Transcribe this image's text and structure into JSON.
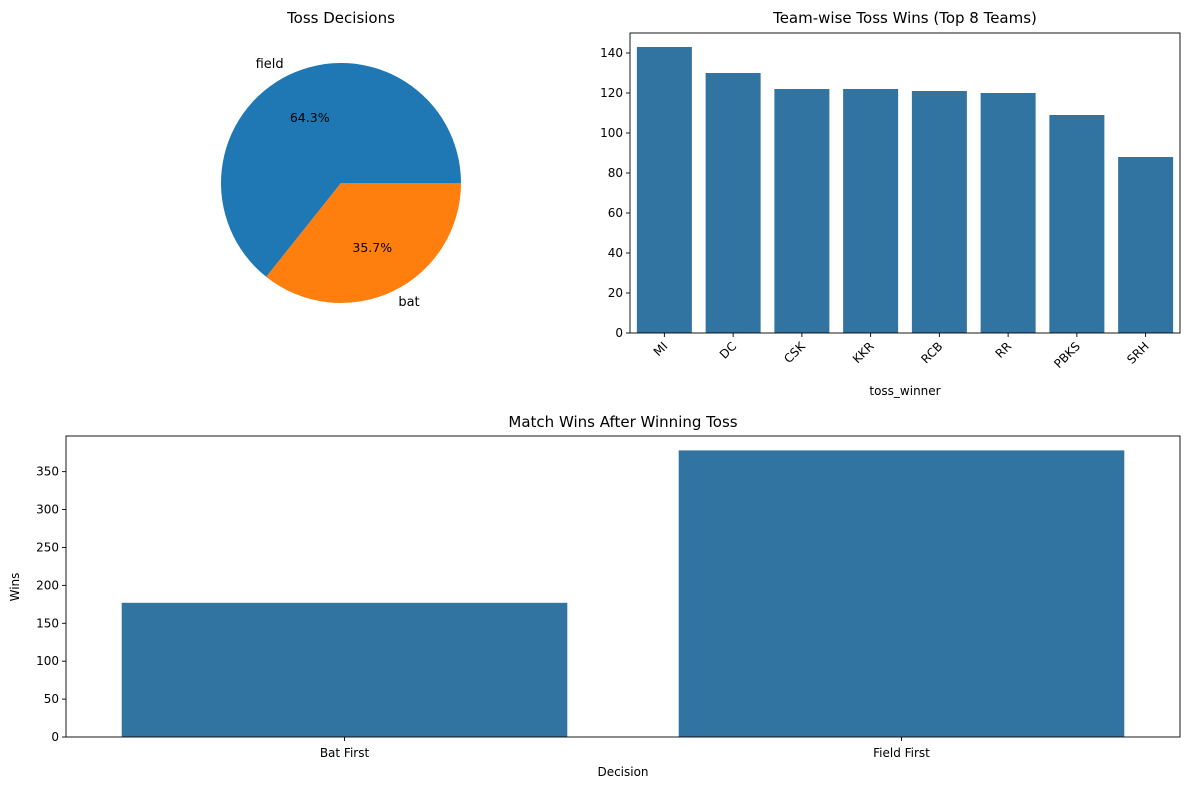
{
  "colors": {
    "blue": "#1f77b4",
    "orange": "#ff7f0e",
    "bar": "#3274a1"
  },
  "chart_data": [
    {
      "type": "pie",
      "title": "Toss Decisions",
      "labels": [
        "field",
        "bat"
      ],
      "values": [
        64.3,
        35.7
      ],
      "percent_labels": [
        "64.3%",
        "35.7%"
      ],
      "colors": [
        "#1f77b4",
        "#ff7f0e"
      ]
    },
    {
      "type": "bar",
      "title": "Team-wise Toss Wins (Top 8 Teams)",
      "categories": [
        "MI",
        "DC",
        "CSK",
        "KKR",
        "RCB",
        "RR",
        "PBKS",
        "SRH"
      ],
      "values": [
        143,
        130,
        122,
        122,
        121,
        120,
        109,
        88
      ],
      "xlabel": "toss_winner",
      "ylabel": "",
      "ylim": [
        0,
        150
      ],
      "yticks": [
        "0",
        "20",
        "40",
        "60",
        "80",
        "100",
        "120",
        "140"
      ],
      "xtick_rotation": 45
    },
    {
      "type": "bar",
      "title": "Match Wins After Winning Toss",
      "categories": [
        "Bat First",
        "Field First"
      ],
      "values": [
        177,
        378
      ],
      "xlabel": "Decision",
      "ylabel": "Wins",
      "ylim": [
        0,
        397
      ],
      "yticks": [
        "0",
        "50",
        "100",
        "150",
        "200",
        "250",
        "300",
        "350"
      ]
    }
  ]
}
